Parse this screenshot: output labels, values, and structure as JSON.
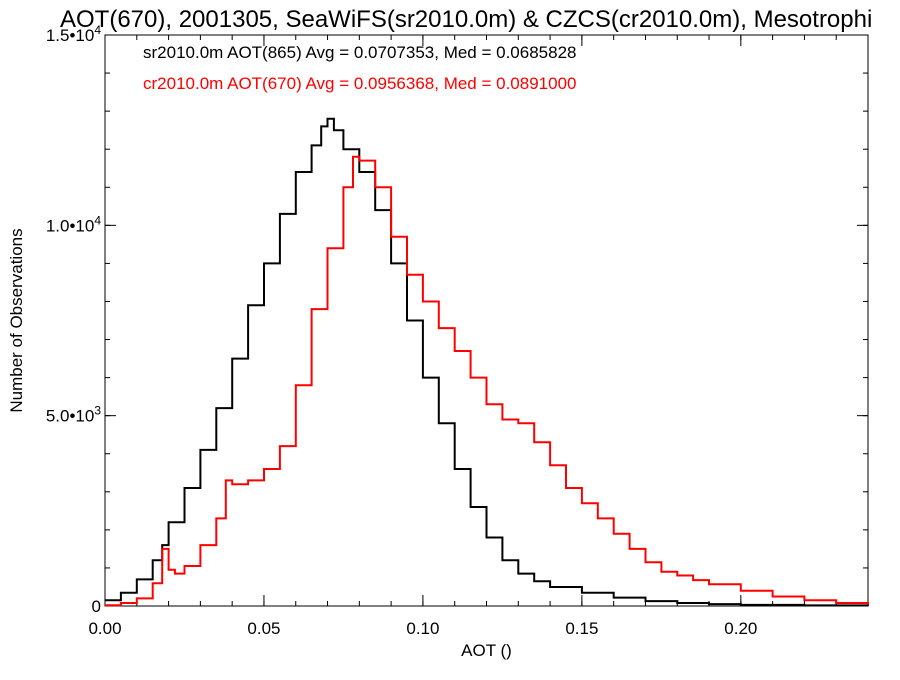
{
  "chart_data": {
    "type": "line",
    "title": "AOT(670), 2001305, SeaWiFS(sr2010.0m) & CZCS(cr2010.0m), Mesotrophi",
    "xlabel": "AOT ()",
    "ylabel": "Number of Observations",
    "xlim": [
      0.0,
      0.24
    ],
    "ylim": [
      0,
      15000
    ],
    "x_ticks": [
      {
        "value": 0.0,
        "label": "0.00"
      },
      {
        "value": 0.05,
        "label": "0.05"
      },
      {
        "value": 0.1,
        "label": "0.10"
      },
      {
        "value": 0.15,
        "label": "0.15"
      },
      {
        "value": 0.2,
        "label": "0.20"
      }
    ],
    "y_ticks": [
      {
        "value": 0,
        "label": "0",
        "sup": ""
      },
      {
        "value": 5000,
        "label": "5.0•10",
        "sup": "3"
      },
      {
        "value": 10000,
        "label": "1.0•10",
        "sup": "4"
      },
      {
        "value": 15000,
        "label": "1.5•10",
        "sup": "4"
      }
    ],
    "x_minor_step": 0.01,
    "y_minor_step": 1000,
    "grid": false,
    "legend_position": "top-left",
    "series": [
      {
        "name": "sr2010.0m AOT(865) Avg = 0.0707353, Med = 0.0685828",
        "color": "#000000",
        "points": [
          [
            0.0,
            150
          ],
          [
            0.005,
            350
          ],
          [
            0.01,
            700
          ],
          [
            0.015,
            1200
          ],
          [
            0.018,
            1600
          ],
          [
            0.02,
            2200
          ],
          [
            0.025,
            3100
          ],
          [
            0.03,
            4100
          ],
          [
            0.035,
            5200
          ],
          [
            0.04,
            6500
          ],
          [
            0.045,
            7900
          ],
          [
            0.05,
            9000
          ],
          [
            0.055,
            10300
          ],
          [
            0.06,
            11400
          ],
          [
            0.065,
            12100
          ],
          [
            0.068,
            12600
          ],
          [
            0.07,
            12800
          ],
          [
            0.072,
            12500
          ],
          [
            0.075,
            12000
          ],
          [
            0.08,
            11400
          ],
          [
            0.085,
            10400
          ],
          [
            0.09,
            9000
          ],
          [
            0.095,
            7500
          ],
          [
            0.1,
            6000
          ],
          [
            0.105,
            4800
          ],
          [
            0.11,
            3600
          ],
          [
            0.115,
            2600
          ],
          [
            0.12,
            1800
          ],
          [
            0.125,
            1200
          ],
          [
            0.13,
            850
          ],
          [
            0.135,
            650
          ],
          [
            0.14,
            500
          ],
          [
            0.15,
            350
          ],
          [
            0.16,
            220
          ],
          [
            0.17,
            130
          ],
          [
            0.18,
            80
          ],
          [
            0.19,
            50
          ],
          [
            0.2,
            30
          ],
          [
            0.22,
            15
          ],
          [
            0.24,
            5
          ]
        ]
      },
      {
        "name": "cr2010.0m AOT(670) Avg = 0.0956368, Med = 0.0891000",
        "color": "#ff0000",
        "points": [
          [
            0.0,
            20
          ],
          [
            0.005,
            80
          ],
          [
            0.01,
            200
          ],
          [
            0.015,
            600
          ],
          [
            0.018,
            1500
          ],
          [
            0.02,
            950
          ],
          [
            0.022,
            850
          ],
          [
            0.025,
            1050
          ],
          [
            0.03,
            1600
          ],
          [
            0.035,
            2300
          ],
          [
            0.038,
            3300
          ],
          [
            0.04,
            3200
          ],
          [
            0.045,
            3300
          ],
          [
            0.05,
            3600
          ],
          [
            0.055,
            4200
          ],
          [
            0.06,
            5800
          ],
          [
            0.065,
            7800
          ],
          [
            0.07,
            9400
          ],
          [
            0.075,
            11000
          ],
          [
            0.078,
            11800
          ],
          [
            0.08,
            11700
          ],
          [
            0.085,
            11000
          ],
          [
            0.09,
            9700
          ],
          [
            0.095,
            8700
          ],
          [
            0.1,
            8000
          ],
          [
            0.105,
            7300
          ],
          [
            0.11,
            6700
          ],
          [
            0.115,
            6000
          ],
          [
            0.12,
            5300
          ],
          [
            0.125,
            4900
          ],
          [
            0.13,
            4800
          ],
          [
            0.135,
            4300
          ],
          [
            0.14,
            3700
          ],
          [
            0.145,
            3100
          ],
          [
            0.15,
            2700
          ],
          [
            0.155,
            2300
          ],
          [
            0.16,
            1900
          ],
          [
            0.165,
            1500
          ],
          [
            0.17,
            1150
          ],
          [
            0.175,
            900
          ],
          [
            0.18,
            800
          ],
          [
            0.185,
            680
          ],
          [
            0.19,
            570
          ],
          [
            0.2,
            400
          ],
          [
            0.21,
            250
          ],
          [
            0.22,
            150
          ],
          [
            0.23,
            80
          ],
          [
            0.24,
            30
          ]
        ]
      }
    ]
  }
}
